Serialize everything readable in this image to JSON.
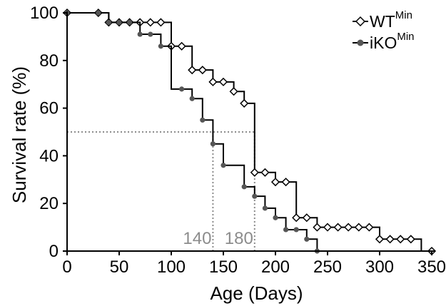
{
  "chart_data": {
    "type": "line",
    "step": true,
    "xlabel": "Age (Days)",
    "ylabel": "Survival rate (%)",
    "xlim": [
      0,
      350
    ],
    "ylim": [
      0,
      100
    ],
    "xticks": [
      "0",
      "50",
      "100",
      "150",
      "200",
      "250",
      "300",
      "350"
    ],
    "yticks": [
      "0",
      "20",
      "40",
      "60",
      "80",
      "100"
    ],
    "grid": false,
    "legend_position": "top-right",
    "series": [
      {
        "name": "WT",
        "name_superscript": "Min",
        "marker": "open-diamond",
        "color": "#000000",
        "points": [
          [
            0,
            100
          ],
          [
            30,
            100
          ],
          [
            40,
            96
          ],
          [
            50,
            96
          ],
          [
            60,
            96
          ],
          [
            70,
            96
          ],
          [
            80,
            96
          ],
          [
            90,
            96
          ],
          [
            100,
            96
          ],
          [
            100,
            86
          ],
          [
            110,
            86
          ],
          [
            120,
            86
          ],
          [
            120,
            76
          ],
          [
            130,
            76
          ],
          [
            140,
            76
          ],
          [
            140,
            71
          ],
          [
            150,
            71
          ],
          [
            160,
            67
          ],
          [
            170,
            62
          ],
          [
            180,
            52
          ],
          [
            180,
            33
          ],
          [
            190,
            33
          ],
          [
            200,
            29
          ],
          [
            210,
            29
          ],
          [
            220,
            14
          ],
          [
            230,
            14
          ],
          [
            240,
            10
          ],
          [
            250,
            10
          ],
          [
            260,
            10
          ],
          [
            270,
            10
          ],
          [
            280,
            10
          ],
          [
            290,
            10
          ],
          [
            300,
            5
          ],
          [
            310,
            5
          ],
          [
            320,
            5
          ],
          [
            330,
            5
          ],
          [
            340,
            0
          ],
          [
            350,
            0
          ]
        ],
        "markers_x": [
          0,
          30,
          40,
          50,
          60,
          70,
          80,
          90,
          100,
          110,
          120,
          130,
          140,
          150,
          160,
          170,
          180,
          190,
          200,
          210,
          220,
          230,
          240,
          250,
          260,
          270,
          280,
          290,
          300,
          310,
          320,
          330,
          350
        ]
      },
      {
        "name": "iKO",
        "name_superscript": "Min",
        "marker": "filled-circle",
        "color": "#555555",
        "points": [
          [
            0,
            100
          ],
          [
            30,
            100
          ],
          [
            40,
            96
          ],
          [
            50,
            96
          ],
          [
            60,
            96
          ],
          [
            70,
            91
          ],
          [
            80,
            91
          ],
          [
            90,
            86
          ],
          [
            100,
            86
          ],
          [
            100,
            68
          ],
          [
            110,
            68
          ],
          [
            120,
            64
          ],
          [
            130,
            55
          ],
          [
            140,
            50
          ],
          [
            140,
            45
          ],
          [
            150,
            45
          ],
          [
            150,
            36
          ],
          [
            160,
            36
          ],
          [
            170,
            27
          ],
          [
            180,
            23
          ],
          [
            190,
            18
          ],
          [
            200,
            14
          ],
          [
            210,
            9
          ],
          [
            220,
            9
          ],
          [
            230,
            5
          ],
          [
            240,
            0
          ]
        ],
        "markers_x": [
          0,
          30,
          40,
          50,
          60,
          70,
          80,
          90,
          110,
          120,
          130,
          140,
          150,
          170,
          180,
          190,
          200,
          210,
          220,
          230,
          240
        ]
      }
    ],
    "annotations": [
      {
        "label": "140",
        "x": 140,
        "y": 50
      },
      {
        "label": "180",
        "x": 180,
        "y": 50
      }
    ],
    "reference_level": 50
  }
}
